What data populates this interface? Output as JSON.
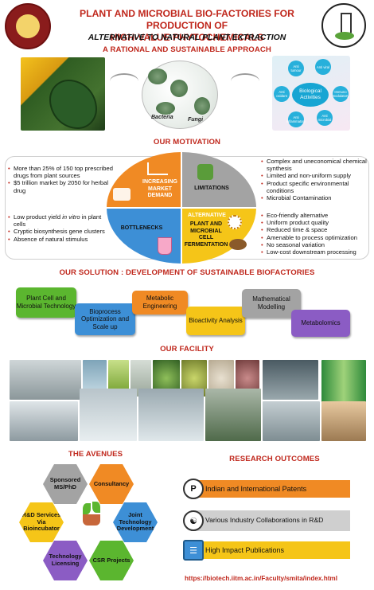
{
  "header": {
    "logo_left_text": "INDIAN INSTITUTE OF TECHNOLOGY MADRAS",
    "title_line1": "PLANT AND MICROBIAL BIO-FACTORIES FOR PRODUCTION OF",
    "title_line2": "HIGH-VALUE PHYTOCHEMICALS",
    "subtitle": "ALTERNATIVE TO NATURAL PLANT EXTRACTION"
  },
  "approach": {
    "heading": "A RATIONAL AND SUSTAINABLE APPROACH",
    "labels": [
      "Bacteria",
      "Fungi"
    ],
    "bio_center": "Biological Activities",
    "bio_nodes": [
      "Anti tumour",
      "Anti viral",
      "Immuno modulatory",
      "Anti microbial",
      "Anti inflammatory",
      "Anti oxidant"
    ]
  },
  "motivation": {
    "heading": "OUR MOTIVATION",
    "demand_points": [
      "More than 25% of 150 top prescribed drugs from plant sources",
      "$5 trillion market by 2050 for herbal drug"
    ],
    "limitation_points": [
      "Complex and uneconomical chemical synthesis",
      "Limited and non-uniform supply",
      "Product specific environmental conditions",
      "Microbial Contamination"
    ],
    "bottleneck_points": [
      "Low product yield in vitro in plant cells",
      "Cryptic biosynthesis gene clusters",
      "Absence of natural stimulus"
    ],
    "alternative_points": [
      "Eco-friendly alternative",
      "Uniform product quality",
      "Reduced time & space",
      "Amenable to process optimization",
      "No seasonal variation",
      "Low-cost downstream processing"
    ],
    "quadrants": {
      "demand": "INCREASING MARKET DEMAND",
      "limitations": "LIMITATIONS",
      "bottlenecks": "BOTTLENECKS",
      "alternative_head": "ALTERNATIVE",
      "alternative": "PLANT AND MICROBIAL CELL FERMENTATION"
    }
  },
  "solution": {
    "heading": "OUR SOLUTION : DEVELOPMENT OF SUSTAINABLE BIOFACTORIES",
    "steps": [
      "Plant Cell and Microbial Technology",
      "Bioprocess Optimization and Scale up",
      "Metabolic Engineering",
      "Bioactivity Analysis",
      "Mathematical Modelling",
      "Metabolomics"
    ]
  },
  "facility": {
    "heading": "OUR FACILITY"
  },
  "avenues": {
    "heading": "THE AVENUES",
    "items": [
      "Sponsored MS/PhD",
      "Consultancy",
      "R&D Services Via Bioincubator",
      "Joint Technology Development",
      "Technology Licensing",
      "CSR Projects"
    ]
  },
  "outcomes": {
    "heading": "RESEARCH OUTCOMES",
    "items": [
      "Indian and International Patents",
      "Various Industry Collaborations in R&D",
      "High Impact Publications"
    ]
  },
  "footer": {
    "url": "https://biotech.iitm.ac.in/Faculty/smita/index.html"
  },
  "colors": {
    "accent_red": "#c0281d",
    "orange": "#f08a24",
    "grey": "#9e9e9e",
    "blue": "#3d8fd6",
    "yellow": "#f5c518",
    "green": "#5bb62f",
    "purple": "#8b5cc4"
  }
}
